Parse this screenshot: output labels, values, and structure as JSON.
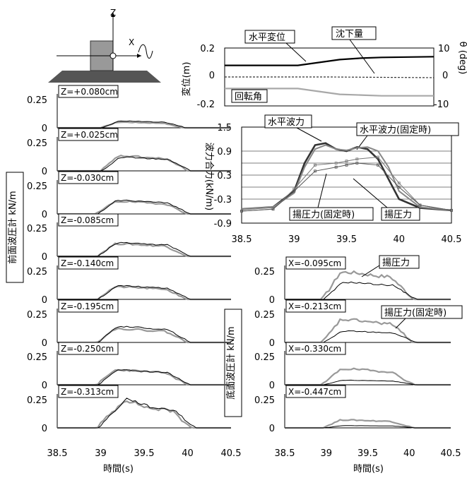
{
  "figure": {
    "x_tick_labels": [
      "38.5",
      "39",
      "39.5",
      "40",
      "40.5"
    ],
    "time_label": "時間(s)",
    "inset_labels": {
      "z": "Z",
      "x": "X"
    }
  },
  "chart_data": [
    {
      "id": "displacement",
      "type": "line",
      "ylabel_left": "変位(m)",
      "ylabel_right": "θ (deg)",
      "yticks_left": [
        "0.2",
        "0",
        "-0.2"
      ],
      "yticks_right": [
        "10",
        "0",
        "-10"
      ],
      "xlim": [
        38.5,
        40.5
      ],
      "ylim": [
        -0.2,
        0.2
      ],
      "annotations": [
        "水平変位",
        "沈下量",
        "回転角"
      ],
      "series": [
        {
          "name": "水平変位",
          "color": "#000000",
          "width": 2.2,
          "x": [
            38.5,
            39.0,
            39.2,
            39.4,
            39.6,
            39.8,
            40.0,
            40.5
          ],
          "y": [
            0.08,
            0.08,
            0.08,
            0.1,
            0.12,
            0.13,
            0.135,
            0.14
          ]
        },
        {
          "name": "沈下量",
          "color": "#333333",
          "width": 1.2,
          "dash": "3,2",
          "x": [
            38.5,
            39.5,
            40.5
          ],
          "y": [
            0.0,
            0.0,
            -0.005
          ]
        },
        {
          "name": "回転角",
          "color": "#a8a8a8",
          "width": 2.2,
          "x": [
            38.5,
            39.0,
            39.2,
            39.4,
            39.6,
            39.8,
            40.0,
            40.5
          ],
          "y": [
            -0.08,
            -0.08,
            -0.08,
            -0.1,
            -0.12,
            -0.125,
            -0.13,
            -0.13
          ]
        }
      ]
    },
    {
      "id": "wave-force",
      "type": "line",
      "ylabel": "波力合力(kN/m)",
      "yticks": [
        "1.5",
        "0.9",
        "0.3",
        "-0.3",
        "-0.9"
      ],
      "xticks": [
        "38.5",
        "39",
        "39.5",
        "40",
        "40.5"
      ],
      "xlim": [
        38.5,
        40.5
      ],
      "ylim": [
        -0.9,
        1.5
      ],
      "grid": "horizontal",
      "annotations": [
        "水平波力",
        "水平波力(固定時)",
        "揚圧力(固定時)",
        "揚圧力"
      ],
      "series": [
        {
          "name": "水平波力",
          "color": "#333333",
          "width": 2.6,
          "x": [
            38.5,
            38.8,
            39.0,
            39.1,
            39.2,
            39.3,
            39.4,
            39.5,
            39.6,
            39.7,
            39.8,
            39.9,
            40.0,
            40.2,
            40.5
          ],
          "y": [
            -0.55,
            -0.5,
            -0.1,
            0.6,
            1.05,
            1.1,
            0.95,
            0.9,
            1.0,
            0.95,
            0.7,
            0.2,
            -0.3,
            -0.52,
            -0.58
          ]
        },
        {
          "name": "水平波力(固定時)",
          "color": "#888888",
          "width": 2.0,
          "x": [
            38.5,
            38.8,
            39.0,
            39.1,
            39.2,
            39.3,
            39.4,
            39.5,
            39.6,
            39.7,
            39.8,
            39.9,
            40.0,
            40.2,
            40.5
          ],
          "y": [
            -0.55,
            -0.5,
            -0.15,
            0.5,
            0.95,
            1.05,
            0.95,
            0.92,
            0.98,
            1.0,
            0.9,
            0.5,
            -0.1,
            -0.5,
            -0.58
          ]
        },
        {
          "name": "揚圧力(固定時)",
          "color": "#777777",
          "width": 1.0,
          "marker": true,
          "x": [
            38.5,
            38.8,
            39.0,
            39.2,
            39.4,
            39.5,
            39.6,
            39.8,
            40.0,
            40.2,
            40.5
          ],
          "y": [
            -0.6,
            -0.55,
            -0.05,
            0.55,
            0.6,
            0.65,
            0.7,
            0.75,
            0.1,
            -0.45,
            -0.58
          ]
        },
        {
          "name": "揚圧力",
          "color": "#555555",
          "width": 1.0,
          "marker": true,
          "x": [
            38.5,
            38.8,
            39.0,
            39.2,
            39.4,
            39.5,
            39.6,
            39.8,
            40.0,
            40.2,
            40.5
          ],
          "y": [
            -0.6,
            -0.55,
            -0.1,
            0.4,
            0.5,
            0.55,
            0.6,
            0.55,
            0.0,
            -0.45,
            -0.58
          ]
        }
      ]
    },
    {
      "id": "front-pressure",
      "type": "line",
      "group_ylabel": "前面波圧計 kN/m",
      "xlim": [
        38.5,
        40.5
      ],
      "ylim": [
        0,
        0.3
      ],
      "panels": [
        {
          "label": "Z=+0.080cm",
          "yticks": [
            "0.25",
            "0"
          ],
          "peak_black": 0.06,
          "peak_gray": 0.05,
          "shape": "flat",
          "t0": 39.0,
          "t1": 39.95
        },
        {
          "label": "Z=+0.025cm",
          "yticks": [
            "0.25",
            "0"
          ],
          "peak_black": 0.12,
          "peak_gray": 0.13,
          "shape": "flat",
          "t0": 39.0,
          "t1": 40.0
        },
        {
          "label": "Z=-0.030cm",
          "yticks": [
            "0.25",
            "0"
          ],
          "peak_black": 0.12,
          "peak_gray": 0.11,
          "shape": "flat",
          "t0": 38.95,
          "t1": 40.0
        },
        {
          "label": "Z=-0.085cm",
          "yticks": [
            "0.25",
            "0"
          ],
          "peak_black": 0.12,
          "peak_gray": 0.11,
          "shape": "flat",
          "t0": 38.95,
          "t1": 40.0
        },
        {
          "label": "Z=-0.140cm",
          "yticks": [
            "0.25",
            "0"
          ],
          "peak_black": 0.12,
          "peak_gray": 0.11,
          "shape": "flat",
          "t0": 38.95,
          "t1": 40.0
        },
        {
          "label": "Z=-0.195cm",
          "yticks": [
            "0.25",
            "0"
          ],
          "peak_black": 0.14,
          "peak_gray": 0.12,
          "shape": "flat",
          "t0": 38.95,
          "t1": 40.0
        },
        {
          "label": "Z=-0.250cm",
          "yticks": [
            "0.25",
            "0"
          ],
          "peak_black": 0.13,
          "peak_gray": 0.13,
          "shape": "flat",
          "t0": 38.95,
          "t1": 40.0
        },
        {
          "label": "Z=-0.313cm",
          "yticks": [
            "0.25",
            "0"
          ],
          "peak_black": 0.26,
          "peak_gray": 0.25,
          "shape": "peak",
          "t0": 38.95,
          "t1": 40.05
        }
      ]
    },
    {
      "id": "bottom-pressure",
      "type": "line",
      "group_ylabel": "底面波圧計 kN/m",
      "xlim": [
        38.5,
        40.5
      ],
      "ylim": [
        0,
        0.3
      ],
      "annotations": [
        "揚圧力",
        "揚圧力(固定時)"
      ],
      "panels": [
        {
          "label": "X=-0.095cm",
          "yticks": [
            "0.25",
            "0"
          ],
          "peak_black": 0.15,
          "peak_gray": 0.24,
          "t0": 38.95,
          "t1": 40.05
        },
        {
          "label": "X=-0.213cm",
          "yticks": [
            "0.25",
            "0"
          ],
          "peak_black": 0.1,
          "peak_gray": 0.2,
          "t0": 38.95,
          "t1": 40.05
        },
        {
          "label": "X=-0.330cm",
          "yticks": [
            "0.25",
            "0"
          ],
          "peak_black": 0.04,
          "peak_gray": 0.14,
          "t0": 38.95,
          "t1": 40.05
        },
        {
          "label": "X=-0.447cm",
          "yticks": [
            "0.25",
            "0"
          ],
          "peak_black": 0.02,
          "peak_gray": 0.07,
          "t0": 38.95,
          "t1": 40.05
        }
      ]
    }
  ]
}
